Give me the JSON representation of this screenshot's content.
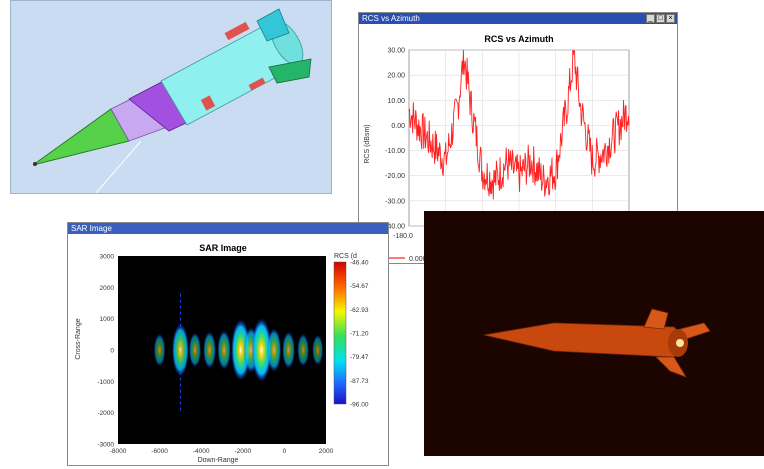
{
  "model_window": {
    "background": "#c9dcf2",
    "body_color": "#8ff0ef",
    "ring_color": "#a34fe0",
    "nose_color": "#55d24a",
    "fin_color": "#25b56a",
    "panel_color": "#e0524c"
  },
  "rcs_window": {
    "title_bar": "RCS vs Azimuth",
    "plot_title": "RCS vs Azimuth",
    "ylabel": "RCS (dBsm)",
    "y_ticks": [
      "30.00",
      "20.00",
      "10.00",
      "0.00",
      "-10.00",
      "-20.00",
      "-30.00",
      "-40.00"
    ],
    "x_tick_first": "-180.0",
    "legend_label": "0.000",
    "line_color": "#ff2020"
  },
  "sar_window": {
    "title_bar": "SAR Image",
    "plot_title": "SAR Image",
    "xlabel": "Down-Range",
    "ylabel": "Cross-Range",
    "x_ticks": [
      "-8000",
      "-6000",
      "-4000",
      "-2000",
      "0",
      "2000"
    ],
    "y_ticks": [
      "3000",
      "2000",
      "1000",
      "0",
      "-1000",
      "-2000",
      "-3000"
    ],
    "colorbar_title": "RCS (d",
    "colorbar_ticks": [
      "-46.40",
      "-54.67",
      "-62.93",
      "-71.20",
      "-79.47",
      "-87.73",
      "-96.00"
    ]
  },
  "render_window": {
    "background": "#1c0500",
    "missile_color": "#c8480d"
  },
  "chart_data": [
    {
      "type": "line",
      "title": "RCS vs Azimuth",
      "xlabel": "",
      "ylabel": "RCS (dBsm)",
      "ylim": [
        -40,
        30
      ],
      "x": [
        -180,
        -160,
        -140,
        -120,
        -100,
        -90,
        -80,
        -60,
        -40,
        -20,
        0,
        20,
        40,
        60,
        80,
        90,
        100,
        120,
        140,
        160,
        180
      ],
      "series": [
        {
          "name": "0.000",
          "values": [
            6,
            -2,
            -8,
            -14,
            8,
            28,
            10,
            -18,
            -22,
            -15,
            -20,
            -14,
            -22,
            -18,
            10,
            28,
            8,
            -14,
            -10,
            -2,
            7
          ]
        }
      ],
      "grid": true,
      "legend": "bottom"
    },
    {
      "type": "heatmap",
      "title": "SAR Image",
      "xlabel": "Down-Range",
      "ylabel": "Cross-Range",
      "xlim": [
        -8000,
        2000
      ],
      "ylim": [
        -3000,
        3000
      ],
      "colorbar_range": [
        -96.0,
        -46.4
      ],
      "scatterers": [
        {
          "x": -6000,
          "y": 0,
          "intensity": 0.3
        },
        {
          "x": -5000,
          "y": 0,
          "intensity": 0.75
        },
        {
          "x": -4300,
          "y": 0,
          "intensity": 0.35
        },
        {
          "x": -3600,
          "y": 0,
          "intensity": 0.4
        },
        {
          "x": -2900,
          "y": 0,
          "intensity": 0.45
        },
        {
          "x": -2100,
          "y": 0,
          "intensity": 0.95
        },
        {
          "x": -1600,
          "y": 0,
          "intensity": 0.6
        },
        {
          "x": -1100,
          "y": 0,
          "intensity": 1.0
        },
        {
          "x": -500,
          "y": 0,
          "intensity": 0.55
        },
        {
          "x": 200,
          "y": 0,
          "intensity": 0.4
        },
        {
          "x": 900,
          "y": 0,
          "intensity": 0.3
        },
        {
          "x": 1600,
          "y": 0,
          "intensity": 0.25
        }
      ]
    }
  ]
}
